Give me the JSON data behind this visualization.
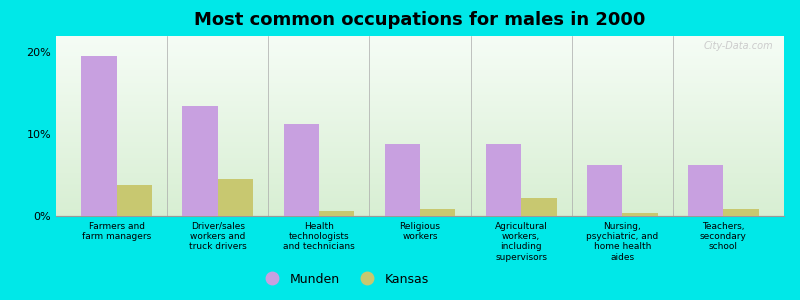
{
  "title": "Most common occupations for males in 2000",
  "categories": [
    "Farmers and\nfarm managers",
    "Driver/sales\nworkers and\ntruck drivers",
    "Health\ntechnologists\nand technicians",
    "Religious\nworkers",
    "Agricultural\nworkers,\nincluding\nsupervisors",
    "Nursing,\npsychiatric, and\nhome health\naides",
    "Teachers,\nsecondary\nschool"
  ],
  "munden_values": [
    19.5,
    13.5,
    11.2,
    8.8,
    8.8,
    6.2,
    6.2
  ],
  "kansas_values": [
    3.8,
    4.5,
    0.6,
    0.9,
    2.2,
    0.4,
    0.9
  ],
  "munden_color": "#c8a0e0",
  "kansas_color": "#c8c870",
  "bg_color": "#00e8e8",
  "ylim": [
    0,
    22
  ],
  "yticks": [
    0,
    10,
    20
  ],
  "ytick_labels": [
    "0%",
    "10%",
    "20%"
  ],
  "bar_width": 0.35,
  "legend_munden": "Munden",
  "legend_kansas": "Kansas",
  "watermark": "City-Data.com"
}
